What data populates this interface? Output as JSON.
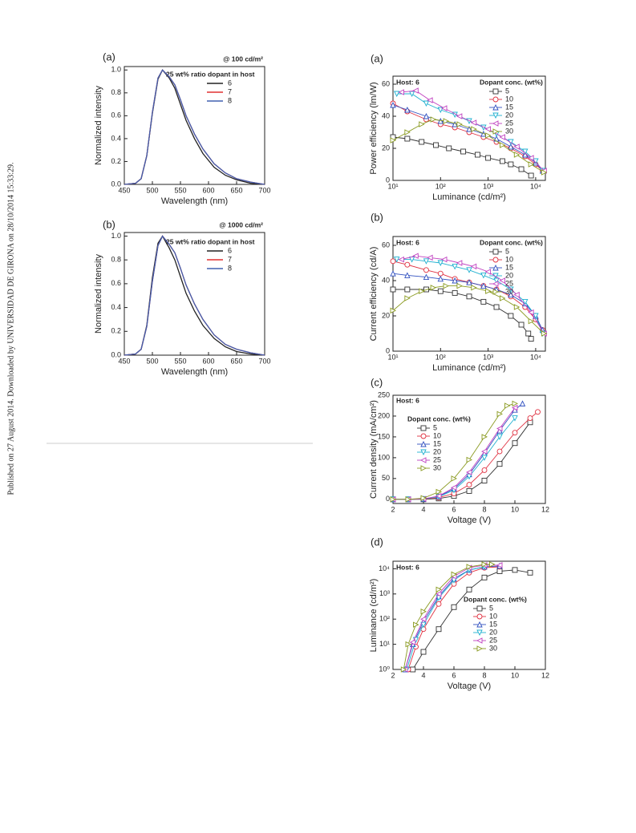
{
  "side_note": "Published on 27 August 2014. Downloaded by UNIVERSIDAD DE GIRONA on 28/10/2014 15:33:29.",
  "chart_data": [
    {
      "type": "line",
      "panel": "(a)",
      "annotation": "@ 100 cd/m²",
      "legend_title": "25 wt% ratio dopant  in host",
      "x_label": "Wavelength (nm)",
      "y_label": "Normalized intensity",
      "x": [
        450,
        470,
        480,
        490,
        500,
        510,
        518,
        530,
        540,
        550,
        560,
        575,
        590,
        610,
        630,
        650,
        675,
        700
      ],
      "series": [
        {
          "name": "6",
          "color": "#222222",
          "values": [
            0,
            0.01,
            0.05,
            0.25,
            0.62,
            0.92,
            1.0,
            0.93,
            0.84,
            0.7,
            0.56,
            0.4,
            0.27,
            0.15,
            0.08,
            0.04,
            0.01,
            0
          ]
        },
        {
          "name": "7",
          "color": "#e03030",
          "values": [
            0,
            0.01,
            0.05,
            0.25,
            0.63,
            0.93,
            1.0,
            0.94,
            0.87,
            0.74,
            0.6,
            0.44,
            0.31,
            0.18,
            0.1,
            0.05,
            0.02,
            0
          ]
        },
        {
          "name": "8",
          "color": "#4060b0",
          "values": [
            0,
            0.01,
            0.05,
            0.25,
            0.63,
            0.93,
            1.0,
            0.94,
            0.87,
            0.74,
            0.6,
            0.44,
            0.31,
            0.18,
            0.1,
            0.05,
            0.02,
            0
          ]
        }
      ],
      "xlim": [
        450,
        700
      ],
      "xticks": [
        450,
        500,
        550,
        600,
        650,
        700
      ],
      "ylim": [
        0,
        1.03
      ],
      "yticks": [
        {
          "value": 0,
          "label": "0.0"
        },
        0.2,
        0.4,
        0.6,
        0.8,
        {
          "value": 1,
          "label": "1.0"
        }
      ]
    },
    {
      "type": "line",
      "panel": "(b)",
      "annotation": "@ 1000 cd/m²",
      "legend_title": "25 wt% ratio dopant  in host",
      "x_label": "Wavelength (nm)",
      "y_label": "Normalized intensity",
      "x": [
        450,
        470,
        480,
        490,
        500,
        510,
        518,
        530,
        540,
        550,
        560,
        575,
        590,
        610,
        630,
        650,
        675,
        700
      ],
      "series": [
        {
          "name": "6",
          "color": "#222222",
          "values": [
            0,
            0.01,
            0.05,
            0.25,
            0.65,
            0.94,
            1.0,
            0.9,
            0.8,
            0.66,
            0.52,
            0.37,
            0.25,
            0.14,
            0.07,
            0.03,
            0.01,
            0
          ]
        },
        {
          "name": "7",
          "color": "#e03030",
          "values": [
            0,
            0.01,
            0.05,
            0.24,
            0.62,
            0.92,
            1.0,
            0.93,
            0.86,
            0.73,
            0.59,
            0.43,
            0.3,
            0.17,
            0.09,
            0.05,
            0.02,
            0
          ]
        },
        {
          "name": "8",
          "color": "#4060b0",
          "values": [
            0,
            0.01,
            0.05,
            0.24,
            0.62,
            0.92,
            1.0,
            0.93,
            0.86,
            0.73,
            0.59,
            0.43,
            0.3,
            0.17,
            0.09,
            0.05,
            0.02,
            0
          ]
        }
      ],
      "xlim": [
        450,
        700
      ],
      "xticks": [
        450,
        500,
        550,
        600,
        650,
        700
      ],
      "ylim": [
        0,
        1.03
      ],
      "yticks": [
        {
          "value": 0,
          "label": "0.0"
        },
        0.2,
        0.4,
        0.6,
        0.8,
        {
          "value": 1,
          "label": "1.0"
        }
      ]
    },
    {
      "type": "line",
      "panel": "(a)",
      "host_label": "Host: 6",
      "legend_title": "Dopant conc. (wt%)",
      "x_label": "Luminance (cd/m²)",
      "y_label": "Power efficiency (lm/W)",
      "xlog": true,
      "series": [
        {
          "name": "5",
          "color": "#333333",
          "marker": "square",
          "x": [
            10,
            20,
            40,
            80,
            150,
            300,
            600,
            1000,
            2000,
            3000,
            5000,
            8000
          ],
          "values": [
            27,
            26,
            24,
            22,
            20,
            18,
            16,
            14,
            12,
            10,
            7,
            3
          ]
        },
        {
          "name": "10",
          "color": "#e03040",
          "marker": "circle",
          "x": [
            10,
            20,
            50,
            100,
            200,
            400,
            800,
            1500,
            3000,
            6000,
            10000,
            14000
          ],
          "values": [
            48,
            43,
            38,
            35,
            33,
            30,
            27,
            24,
            20,
            15,
            10,
            6
          ]
        },
        {
          "name": "15",
          "color": "#3050c0",
          "marker": "up",
          "x": [
            10,
            20,
            50,
            100,
            200,
            400,
            800,
            1500,
            3000,
            6000,
            10000,
            14000
          ],
          "values": [
            47,
            44,
            40,
            37,
            35,
            32,
            29,
            26,
            21,
            16,
            11,
            6
          ]
        },
        {
          "name": "20",
          "color": "#20b0d0",
          "marker": "down",
          "x": [
            12,
            25,
            50,
            100,
            200,
            400,
            800,
            1500,
            3000,
            6000,
            10000,
            14000
          ],
          "values": [
            54,
            54,
            48,
            44,
            41,
            37,
            33,
            29,
            24,
            18,
            12,
            6
          ]
        },
        {
          "name": "25",
          "color": "#c040c0",
          "marker": "left",
          "x": [
            15,
            30,
            60,
            120,
            250,
            500,
            1000,
            2000,
            4000,
            8000,
            15000
          ],
          "values": [
            55,
            56,
            50,
            45,
            40,
            36,
            32,
            27,
            21,
            14,
            6
          ]
        },
        {
          "name": "30",
          "color": "#8a9a20",
          "marker": "right",
          "x": [
            10,
            20,
            40,
            70,
            130,
            250,
            500,
            1000,
            2000,
            4000,
            8000,
            15000
          ],
          "values": [
            25,
            30,
            35,
            38,
            37,
            35,
            32,
            28,
            22,
            16,
            10,
            5
          ]
        }
      ],
      "xlim": [
        10,
        16000
      ],
      "xticks": [
        {
          "value": 10,
          "label": "10¹"
        },
        {
          "value": 100,
          "label": "10²"
        },
        {
          "value": 1000,
          "label": "10³"
        },
        {
          "value": 10000,
          "label": "10⁴"
        }
      ],
      "ylim": [
        0,
        65
      ],
      "yticks": [
        0,
        20,
        40,
        60
      ]
    },
    {
      "type": "line",
      "panel": "(b)",
      "host_label": "Host: 6",
      "legend_title": "Dopant conc. (wt%)",
      "x_label": "Luminance (cd/m²)",
      "y_label": "Current efficiency (cd/A)",
      "xlog": true,
      "series": [
        {
          "name": "5",
          "color": "#333333",
          "marker": "square",
          "x": [
            10,
            20,
            50,
            100,
            200,
            400,
            800,
            1500,
            3000,
            5000,
            7000,
            8000
          ],
          "values": [
            35,
            35,
            35,
            34,
            33,
            31,
            28,
            25,
            20,
            15,
            10,
            7
          ]
        },
        {
          "name": "10",
          "color": "#e03040",
          "marker": "circle",
          "x": [
            10,
            20,
            50,
            100,
            200,
            400,
            800,
            1500,
            3000,
            6000,
            10000,
            14000
          ],
          "values": [
            51,
            49,
            46,
            44,
            41,
            39,
            37,
            35,
            31,
            25,
            18,
            12
          ]
        },
        {
          "name": "15",
          "color": "#3050c0",
          "marker": "up",
          "x": [
            10,
            20,
            50,
            100,
            200,
            400,
            800,
            1500,
            3000,
            6000,
            10000,
            14000
          ],
          "values": [
            44,
            43,
            42,
            41,
            40,
            39,
            37,
            35,
            32,
            27,
            20,
            12
          ]
        },
        {
          "name": "20",
          "color": "#20b0d0",
          "marker": "down",
          "x": [
            12,
            25,
            50,
            100,
            200,
            400,
            800,
            1500,
            3000,
            6000,
            10000,
            14000
          ],
          "values": [
            52,
            52,
            51,
            50,
            48,
            46,
            43,
            40,
            35,
            28,
            20,
            10
          ]
        },
        {
          "name": "25",
          "color": "#c040c0",
          "marker": "left",
          "x": [
            15,
            30,
            60,
            120,
            250,
            500,
            1000,
            2000,
            4000,
            8000,
            15000
          ],
          "values": [
            52,
            54,
            53,
            52,
            50,
            48,
            45,
            40,
            32,
            22,
            10
          ]
        },
        {
          "name": "30",
          "color": "#8a9a20",
          "marker": "right",
          "x": [
            10,
            20,
            40,
            70,
            130,
            250,
            500,
            1000,
            2000,
            4000,
            8000,
            15000
          ],
          "values": [
            23,
            30,
            34,
            36,
            37,
            37,
            36,
            34,
            30,
            25,
            17,
            10
          ]
        }
      ],
      "xlim": [
        10,
        16000
      ],
      "xticks": [
        {
          "value": 10,
          "label": "10¹"
        },
        {
          "value": 100,
          "label": "10²"
        },
        {
          "value": 1000,
          "label": "10³"
        },
        {
          "value": 10000,
          "label": "10⁴"
        }
      ],
      "ylim": [
        0,
        65
      ],
      "yticks": [
        0,
        20,
        40,
        60
      ]
    },
    {
      "type": "line",
      "panel": "(c)",
      "host_label": "Host: 6",
      "legend_title": "Dopant conc. (wt%)",
      "x_label": "Voltage (V)",
      "y_label": "Current density (mA/cm²)",
      "series": [
        {
          "name": "5",
          "color": "#333333",
          "marker": "square",
          "x": [
            2,
            3,
            4,
            5,
            6,
            7,
            8,
            9,
            10,
            11
          ],
          "values": [
            0,
            0,
            0,
            2,
            8,
            20,
            45,
            85,
            135,
            185
          ]
        },
        {
          "name": "10",
          "color": "#e03040",
          "marker": "circle",
          "x": [
            2,
            3,
            4,
            5,
            6,
            7,
            8,
            9,
            10,
            11,
            11.5
          ],
          "values": [
            0,
            0,
            1,
            4,
            14,
            35,
            70,
            115,
            160,
            195,
            210
          ]
        },
        {
          "name": "15",
          "color": "#3050c0",
          "marker": "up",
          "x": [
            2,
            3,
            4,
            5,
            6,
            7,
            8,
            9,
            10,
            10.5
          ],
          "values": [
            0,
            0,
            1,
            7,
            25,
            60,
            110,
            165,
            215,
            230
          ]
        },
        {
          "name": "20",
          "color": "#20b0d0",
          "marker": "down",
          "x": [
            2,
            3,
            4,
            5,
            6,
            7,
            8,
            9,
            10
          ],
          "values": [
            0,
            0,
            1,
            6,
            22,
            55,
            100,
            150,
            195
          ]
        },
        {
          "name": "25",
          "color": "#c040c0",
          "marker": "left",
          "x": [
            2,
            3,
            4,
            5,
            6,
            7,
            8,
            9,
            10
          ],
          "values": [
            0,
            0,
            1,
            8,
            28,
            65,
            115,
            170,
            220
          ]
        },
        {
          "name": "30",
          "color": "#8a9a20",
          "marker": "right",
          "x": [
            2,
            3,
            4,
            5,
            6,
            7,
            8,
            9,
            9.5,
            10
          ],
          "values": [
            0,
            0,
            3,
            18,
            50,
            95,
            150,
            205,
            225,
            230
          ]
        }
      ],
      "xlim": [
        2,
        12
      ],
      "xticks": [
        2,
        4,
        6,
        8,
        10,
        12
      ],
      "ylim": [
        -10,
        250
      ],
      "yticks": [
        0,
        50,
        100,
        150,
        200,
        250
      ]
    },
    {
      "type": "line",
      "panel": "(d)",
      "host_label": "Host: 6",
      "legend_title": "Dopant conc. (wt%)",
      "x_label": "Voltage (V)",
      "y_label": "Luminance (cd/m²)",
      "ylog": true,
      "series": [
        {
          "name": "5",
          "color": "#333333",
          "marker": "square",
          "x": [
            3.3,
            4,
            5,
            6,
            7,
            8,
            9,
            10,
            11
          ],
          "values": [
            1,
            5,
            40,
            300,
            1500,
            4500,
            8000,
            9000,
            7000
          ]
        },
        {
          "name": "10",
          "color": "#e03040",
          "marker": "circle",
          "x": [
            3,
            3.5,
            4,
            5,
            6,
            7,
            8,
            9
          ],
          "values": [
            1,
            8,
            40,
            400,
            2500,
            7000,
            11000,
            12000
          ]
        },
        {
          "name": "15",
          "color": "#3050c0",
          "marker": "up",
          "x": [
            2.8,
            3.3,
            4,
            5,
            6,
            7,
            8,
            9
          ],
          "values": [
            1,
            10,
            80,
            800,
            4000,
            9000,
            12000,
            13000
          ]
        },
        {
          "name": "20",
          "color": "#20b0d0",
          "marker": "down",
          "x": [
            2.9,
            3.5,
            4,
            5,
            6,
            7,
            8
          ],
          "values": [
            1,
            15,
            60,
            700,
            3500,
            9000,
            12000
          ]
        },
        {
          "name": "25",
          "color": "#c040c0",
          "marker": "left",
          "x": [
            2.8,
            3.3,
            4,
            5,
            6,
            7,
            8,
            9
          ],
          "values": [
            1,
            12,
            100,
            1000,
            5000,
            11000,
            14000,
            14000
          ]
        },
        {
          "name": "30",
          "color": "#8a9a20",
          "marker": "right",
          "x": [
            2.7,
            3,
            3.5,
            4,
            5,
            6,
            7,
            8,
            8.5
          ],
          "values": [
            1,
            10,
            60,
            200,
            1500,
            6000,
            12000,
            15000,
            15000
          ]
        }
      ],
      "xlim": [
        2,
        12
      ],
      "xticks": [
        2,
        4,
        6,
        8,
        10,
        12
      ],
      "ylim": [
        1,
        20000
      ],
      "yticks": [
        {
          "value": 1,
          "label": "10⁰"
        },
        {
          "value": 10,
          "label": "10¹"
        },
        {
          "value": 100,
          "label": "10²"
        },
        {
          "value": 1000,
          "label": "10³"
        },
        {
          "value": 10000,
          "label": "10⁴"
        }
      ]
    }
  ]
}
